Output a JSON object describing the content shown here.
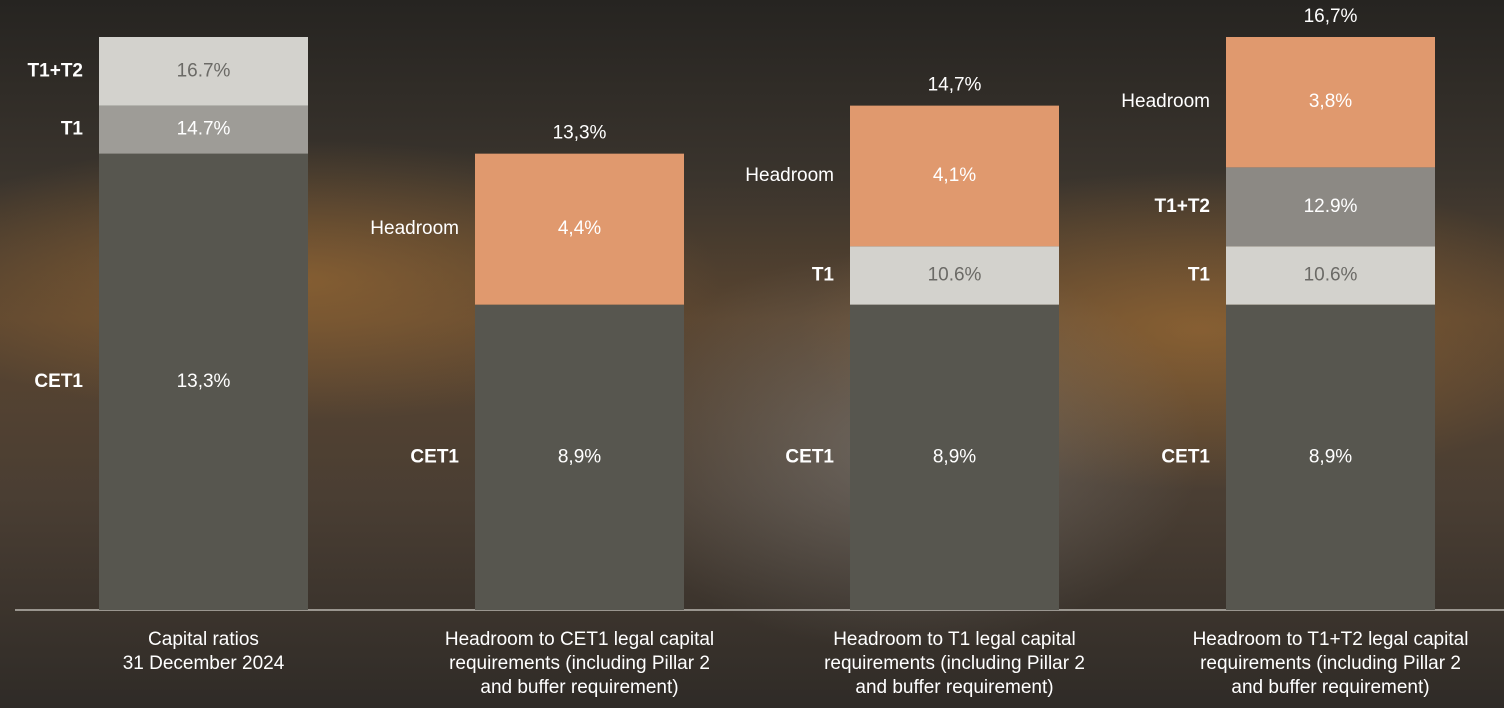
{
  "chart_data": {
    "type": "level-bar",
    "ylim": [
      0,
      16.7
    ],
    "columns": [
      {
        "category": [
          "Capital ratios",
          "31 December 2024"
        ],
        "levels": [
          {
            "name": "CET1",
            "value": 13.3,
            "value_label": "13,3%",
            "color": "#57564f"
          },
          {
            "name": "T1",
            "value": 14.7,
            "value_label": "14.7%",
            "color": "#9e9c97"
          },
          {
            "name": "T1+T2",
            "value": 16.7,
            "value_label": "16.7%",
            "color": "#d3d2cd"
          }
        ]
      },
      {
        "category": [
          "Headroom to CET1 legal capital",
          "requirements (including  Pillar 2",
          "and buffer requirement)"
        ],
        "levels": [
          {
            "name": "CET1",
            "value": 8.9,
            "value_label": "8,9%",
            "color": "#57564f"
          }
        ],
        "headroom": {
          "name": "Headroom",
          "value": 4.4,
          "value_label": "4,4%",
          "color": "#e0996e"
        },
        "total": {
          "value": 13.3,
          "label": "13,3%"
        }
      },
      {
        "category": [
          "Headroom to T1 legal capital",
          "requirements (including  Pillar 2",
          "and buffer requirement)"
        ],
        "levels": [
          {
            "name": "CET1",
            "value": 8.9,
            "value_label": "8,9%",
            "color": "#57564f"
          },
          {
            "name": "T1",
            "value": 10.6,
            "value_label": "10.6%",
            "color": "#d3d2cd"
          }
        ],
        "headroom": {
          "name": "Headroom",
          "value": 4.1,
          "value_label": "4,1%",
          "color": "#e0996e"
        },
        "total": {
          "value": 14.7,
          "label": "14,7%"
        }
      },
      {
        "category": [
          "Headroom to T1+T2 legal capital",
          "requirements (including  Pillar 2",
          "and buffer requirement)"
        ],
        "levels": [
          {
            "name": "CET1",
            "value": 8.9,
            "value_label": "8,9%",
            "color": "#57564f"
          },
          {
            "name": "T1",
            "value": 10.6,
            "value_label": "10.6%",
            "color": "#d3d2cd"
          },
          {
            "name": "T1+T2",
            "value": 12.9,
            "value_label": "12.9%",
            "color": "#8c8984"
          }
        ],
        "headroom": {
          "name": "Headroom",
          "value": 3.8,
          "value_label": "3,8%",
          "color": "#e0996e"
        },
        "total": {
          "value": 16.7,
          "label": "16,7%"
        }
      }
    ]
  }
}
